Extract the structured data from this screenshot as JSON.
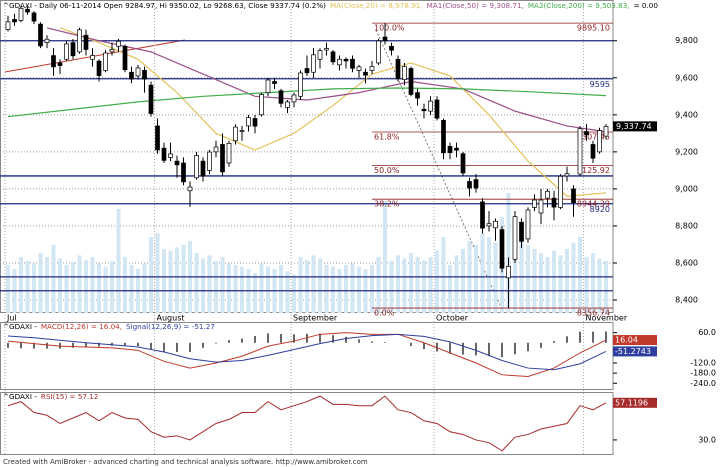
{
  "footer": "Created with AmiBroker - advanced charting and technical analysis software. http://www.amibroker.com",
  "chart_data": [
    {
      "type": "candlestick",
      "title": "^GDAXI - Daily 06-11-2014 Open 9284.97, Hi 9350.02, Lo 9268.63, Close 9337.74 (0.2%)",
      "extra_legend": "= 0.00",
      "categories": [
        "Jul",
        null,
        null,
        null,
        null,
        null,
        null,
        null,
        null,
        null,
        null,
        null,
        null,
        null,
        null,
        null,
        null,
        null,
        null,
        null,
        null,
        null,
        null,
        "August",
        null,
        null,
        null,
        null,
        null,
        null,
        null,
        null,
        null,
        null,
        null,
        null,
        null,
        null,
        null,
        null,
        null,
        null,
        null,
        null,
        "September",
        null,
        null,
        null,
        null,
        null,
        null,
        null,
        null,
        null,
        null,
        null,
        null,
        null,
        null,
        null,
        null,
        null,
        null,
        null,
        null,
        null,
        "October",
        null,
        null,
        null,
        null,
        null,
        null,
        null,
        null,
        null,
        null,
        null,
        null,
        null,
        null,
        null,
        null,
        null,
        null,
        null,
        null,
        null,
        null,
        "November",
        null,
        null,
        null
      ],
      "open": [
        9860,
        9915,
        9910,
        9970,
        9950,
        9890,
        9790,
        9720,
        9680,
        9700,
        9790,
        9740,
        9830,
        9700,
        9690,
        9640,
        9740,
        9770,
        9770,
        9630,
        9610,
        9640,
        9560,
        9340,
        9220,
        9170,
        9150,
        9140,
        8990,
        9060,
        9150,
        9100,
        9200,
        9240,
        9140,
        9260,
        9310,
        9340,
        9380,
        9400,
        9520,
        9580,
        9530,
        9440,
        9470,
        9500,
        9650,
        9630,
        9700,
        9750,
        9740,
        9670,
        9700,
        9700,
        9640,
        9630,
        9640,
        9680,
        9820,
        9770,
        9700,
        9590,
        9650,
        9520,
        9430,
        9420,
        9480,
        9370,
        9230,
        9220,
        9190,
        9040,
        9050,
        8930,
        8800,
        8790,
        8780,
        8520,
        8620,
        8820,
        8730,
        8900,
        8870,
        8950,
        8950,
        8900,
        9070,
        9000,
        9080,
        9310,
        9240,
        9200,
        9284.97
      ],
      "high": [
        9935,
        9945,
        9990,
        9985,
        9960,
        9900,
        9830,
        9760,
        9700,
        9800,
        9810,
        9870,
        9860,
        9760,
        9700,
        9750,
        9790,
        9810,
        9780,
        9660,
        9670,
        9660,
        9580,
        9380,
        9250,
        9250,
        9180,
        9170,
        9040,
        9200,
        9170,
        9210,
        9260,
        9300,
        9260,
        9350,
        9340,
        9400,
        9400,
        9520,
        9600,
        9600,
        9540,
        9480,
        9520,
        9640,
        9720,
        9760,
        9760,
        9790,
        9750,
        9720,
        9710,
        9720,
        9670,
        9650,
        9690,
        9810,
        9895.1,
        9790,
        9720,
        9680,
        9660,
        9540,
        9460,
        9500,
        9500,
        9380,
        9250,
        9250,
        9200,
        9060,
        9080,
        8950,
        8880,
        8840,
        8800,
        8630,
        8880,
        8840,
        8900,
        8970,
        9000,
        9000,
        8990,
        9080,
        9120,
        9020,
        9340,
        9350,
        9260,
        9330,
        9350.02
      ],
      "low": [
        9850,
        9880,
        9900,
        9940,
        9890,
        9760,
        9760,
        9610,
        9620,
        9690,
        9700,
        9730,
        9720,
        9660,
        9580,
        9630,
        9720,
        9740,
        9630,
        9570,
        9590,
        9520,
        9390,
        9190,
        9140,
        9150,
        9060,
        9020,
        8903,
        9050,
        9040,
        9080,
        9170,
        9070,
        9120,
        9240,
        9260,
        9310,
        9300,
        9390,
        9500,
        9540,
        9440,
        9410,
        9440,
        9480,
        9610,
        9600,
        9650,
        9720,
        9670,
        9640,
        9650,
        9630,
        9600,
        9570,
        9620,
        9670,
        9780,
        9720,
        9580,
        9560,
        9500,
        9450,
        9380,
        9400,
        9370,
        9160,
        9160,
        9170,
        9070,
        8960,
        8980,
        8760,
        8770,
        8720,
        8550,
        8356.74,
        8600,
        8680,
        8710,
        8880,
        8810,
        8900,
        8830,
        8890,
        9040,
        8850,
        9070,
        9260,
        9140,
        9190,
        9268.63
      ],
      "close": [
        9902,
        9902,
        9975,
        9955,
        9906,
        9772,
        9808,
        9659,
        9666,
        9783,
        9719,
        9859,
        9753,
        9720,
        9612,
        9734,
        9753,
        9797,
        9644,
        9593,
        9653,
        9593,
        9407,
        9210,
        9154,
        9189,
        9130,
        9038,
        9010,
        9180,
        9069,
        9199,
        9226,
        9092,
        9246,
        9334,
        9315,
        9385,
        9339,
        9510,
        9588,
        9569,
        9462,
        9470,
        9507,
        9626,
        9627,
        9724,
        9747,
        9758,
        9686,
        9700,
        9691,
        9651,
        9659,
        9614,
        9661,
        9799,
        9799,
        9749,
        9595,
        9661,
        9510,
        9490,
        9422,
        9474,
        9382,
        9195,
        9196,
        9209,
        9086,
        9005,
        9005,
        8788,
        8812,
        8825,
        8572,
        8582,
        8850,
        8717,
        8886,
        8940,
        8940,
        8987,
        8902,
        9068,
        9082,
        8926,
        9326,
        9292,
        9166,
        9315,
        9337.74
      ],
      "up_color": "#ffffff",
      "down_color": "#000000",
      "ylim": [
        8330,
        10020
      ],
      "yticks": [
        {
          "value": 8400,
          "label": "8,400"
        },
        {
          "value": 8600,
          "label": "8,600"
        },
        {
          "value": 8800,
          "label": "8,800"
        },
        {
          "value": 9000,
          "label": "9,000"
        },
        {
          "value": 9200,
          "label": "9,200"
        },
        {
          "value": 9400,
          "label": "9,400"
        },
        {
          "value": 9600,
          "label": "9,600"
        },
        {
          "value": 9800,
          "label": "9,800"
        }
      ],
      "grid": true,
      "last_price": {
        "value": 9337.74,
        "label": "9,337.74"
      },
      "volume": {
        "color": "#d3e6f4",
        "vlim": [
          0,
          250
        ],
        "values": [
          60,
          55,
          70,
          65,
          62,
          75,
          70,
          85,
          68,
          60,
          64,
          72,
          66,
          70,
          62,
          58,
          65,
          130,
          70,
          60,
          55,
          62,
          95,
          100,
          80,
          78,
          82,
          85,
          90,
          75,
          68,
          72,
          65,
          70,
          62,
          60,
          58,
          55,
          50,
          62,
          58,
          55,
          60,
          52,
          48,
          70,
          66,
          72,
          68,
          60,
          58,
          55,
          60,
          62,
          58,
          55,
          60,
          70,
          140,
          65,
          72,
          68,
          75,
          70,
          66,
          70,
          78,
          95,
          60,
          72,
          80,
          90,
          85,
          100,
          95,
          88,
          120,
          150,
          110,
          90,
          85,
          80,
          75,
          70,
          78,
          72,
          80,
          88,
          95,
          70,
          75,
          68,
          65
        ]
      },
      "overlays": [
        {
          "name": "MA(Close,20) = 8,978.91,",
          "color": "#e3c25a",
          "x": [
            8,
            14,
            20,
            26,
            32,
            38,
            44,
            50,
            56,
            62,
            68,
            74,
            80,
            86,
            92
          ],
          "values": [
            9870,
            9790,
            9700,
            9520,
            9300,
            9210,
            9300,
            9450,
            9620,
            9680,
            9610,
            9400,
            9150,
            8960,
            8978.91
          ]
        },
        {
          "name": "MA1(Close,50) = 9,308.71,",
          "color": "#9b4f8a",
          "x": [
            6,
            14,
            22,
            30,
            38,
            46,
            54,
            62,
            70,
            78,
            86,
            92
          ],
          "values": [
            9870,
            9800,
            9740,
            9620,
            9500,
            9480,
            9520,
            9580,
            9540,
            9420,
            9340,
            9308.71
          ]
        },
        {
          "name": "MA2(Close,200) = 9,503.83,",
          "color": "#3fae49",
          "x": [
            0,
            10,
            20,
            30,
            40,
            50,
            60,
            70,
            80,
            92
          ],
          "values": [
            9390,
            9430,
            9470,
            9500,
            9520,
            9540,
            9545,
            9540,
            9525,
            9503.83
          ]
        }
      ],
      "levels": {
        "color": "#1c2a80",
        "values": [
          9800,
          9070,
          8525,
          8450
        ]
      },
      "labeled_levels": {
        "color": "#1c2a80",
        "values": [
          9595,
          8920
        ]
      },
      "fibonacci": {
        "color": "#8b1e1e",
        "levels": [
          {
            "name": "100.0%",
            "price": {
              "value": 9895.1,
              "label": "9895.10"
            }
          },
          {
            "name": "61.8%",
            "price": 9307.45
          },
          {
            "name": "50.0%",
            "price": 9125.92
          },
          {
            "name": "38.2%",
            "price": 8944.39
          },
          {
            "name": "0.0%",
            "price": 8356.74
          }
        ]
      }
    },
    {
      "type": "macd",
      "title": "^GDAXI -",
      "ylim": [
        -280,
        123
      ],
      "yticks": [
        {
          "value": 60,
          "label": "60.0"
        },
        {
          "value": -120,
          "label": "-120.0"
        },
        {
          "value": -180,
          "label": "-180.0"
        },
        {
          "value": -240,
          "label": "-240.0"
        }
      ],
      "x": [
        0,
        4,
        8,
        12,
        16,
        20,
        24,
        28,
        32,
        36,
        40,
        44,
        48,
        52,
        56,
        60,
        64,
        68,
        72,
        76,
        80,
        84,
        88,
        92
      ],
      "series": [
        {
          "name": "MACD(12,26) = 16.04,",
          "color": "#c0392b",
          "values": [
            10,
            -5,
            -20,
            -25,
            -30,
            -45,
            -110,
            -150,
            -120,
            -80,
            -20,
            10,
            50,
            60,
            50,
            50,
            0,
            -60,
            -120,
            -190,
            -200,
            -150,
            -60,
            16.04
          ]
        },
        {
          "name": "Signal(12,26,9) = -51.27",
          "color": "#2f3fa0",
          "values": [
            40,
            30,
            15,
            0,
            -12,
            -25,
            -55,
            -95,
            -115,
            -105,
            -75,
            -40,
            -5,
            25,
            42,
            50,
            38,
            5,
            -45,
            -105,
            -150,
            -160,
            -125,
            -51.2743
          ]
        }
      ],
      "histogram": {
        "color": "#000000",
        "x": [
          0,
          2,
          4,
          6,
          8,
          10,
          12,
          14,
          16,
          18,
          20,
          22,
          24,
          26,
          28,
          30,
          32,
          34,
          36,
          38,
          40,
          42,
          44,
          46,
          48,
          50,
          52,
          54,
          56,
          58,
          60,
          62,
          64,
          66,
          68,
          70,
          72,
          74,
          76,
          78,
          80,
          82,
          84,
          86,
          88,
          90,
          92
        ],
        "values": [
          -30,
          -33,
          -35,
          -35,
          -35,
          -30,
          -25,
          -22,
          -18,
          -19,
          -20,
          -38,
          -55,
          -55,
          -55,
          -30,
          -5,
          15,
          25,
          40,
          55,
          52,
          50,
          53,
          55,
          45,
          35,
          20,
          8,
          4,
          0,
          -19,
          -38,
          -52,
          -65,
          -70,
          -75,
          -80,
          -85,
          -68,
          -50,
          -30,
          10,
          38,
          65,
          66,
          67.31
        ]
      }
    },
    {
      "type": "line",
      "title": "^GDAXI -",
      "ylim": [
        19,
        65
      ],
      "yticks": [
        {
          "value": 30,
          "label": "30.0"
        }
      ],
      "x": [
        0,
        2,
        4,
        6,
        8,
        10,
        12,
        14,
        16,
        18,
        20,
        22,
        24,
        26,
        28,
        30,
        32,
        34,
        36,
        38,
        40,
        42,
        44,
        46,
        48,
        50,
        52,
        54,
        56,
        58,
        60,
        62,
        64,
        66,
        68,
        70,
        72,
        74,
        76,
        78,
        80,
        82,
        84,
        86,
        88,
        90,
        92
      ],
      "series": [
        {
          "name": "RSI(15) = 57.12",
          "color": "#a52a2a",
          "values": [
            55,
            58,
            50,
            48,
            42,
            46,
            50,
            44,
            50,
            46,
            45,
            36,
            32,
            33,
            30,
            36,
            42,
            45,
            50,
            50,
            58,
            52,
            55,
            58,
            62,
            56,
            56,
            55,
            55,
            62,
            52,
            50,
            44,
            42,
            36,
            34,
            30,
            28,
            22,
            32,
            34,
            38,
            40,
            42,
            55,
            52,
            57.1196
          ]
        }
      ]
    }
  ]
}
